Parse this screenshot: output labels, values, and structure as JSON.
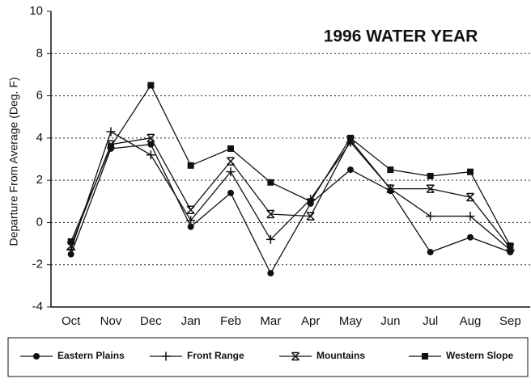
{
  "chart_data": {
    "type": "line",
    "title": "1996 WATER YEAR",
    "ylabel": "Departure From Average (Deg. F)",
    "categories": [
      "Oct",
      "Nov",
      "Dec",
      "Jan",
      "Feb",
      "Mar",
      "Apr",
      "May",
      "Jun",
      "Jul",
      "Aug",
      "Sep"
    ],
    "series": [
      {
        "name": "Eastern Plains",
        "color": "#111",
        "marker": "circle",
        "values": [
          -1.5,
          3.5,
          3.7,
          -0.2,
          1.4,
          -2.4,
          0.9,
          2.5,
          1.5,
          -1.4,
          -0.7,
          -1.4
        ]
      },
      {
        "name": "Front Range",
        "color": "#111",
        "marker": "plus",
        "values": [
          -1.3,
          4.3,
          3.2,
          0.1,
          2.4,
          -0.8,
          1.1,
          3.8,
          1.6,
          0.3,
          0.3,
          -1.3
        ]
      },
      {
        "name": "Mountains",
        "color": "#111",
        "marker": "asterisk",
        "values": [
          -1.1,
          3.7,
          4.0,
          0.6,
          2.9,
          0.4,
          0.3,
          3.9,
          1.6,
          1.6,
          1.2,
          -1.2
        ]
      },
      {
        "name": "Western Slope",
        "color": "#111",
        "marker": "square",
        "values": [
          -0.9,
          3.6,
          6.5,
          2.7,
          3.5,
          1.9,
          1.0,
          4.0,
          2.5,
          2.2,
          2.4,
          -1.1
        ]
      }
    ],
    "ylim": [
      -4,
      10
    ],
    "yticks": [
      -4,
      -2,
      0,
      2,
      4,
      6,
      8,
      10
    ],
    "grid": true,
    "legend": "bottom"
  }
}
